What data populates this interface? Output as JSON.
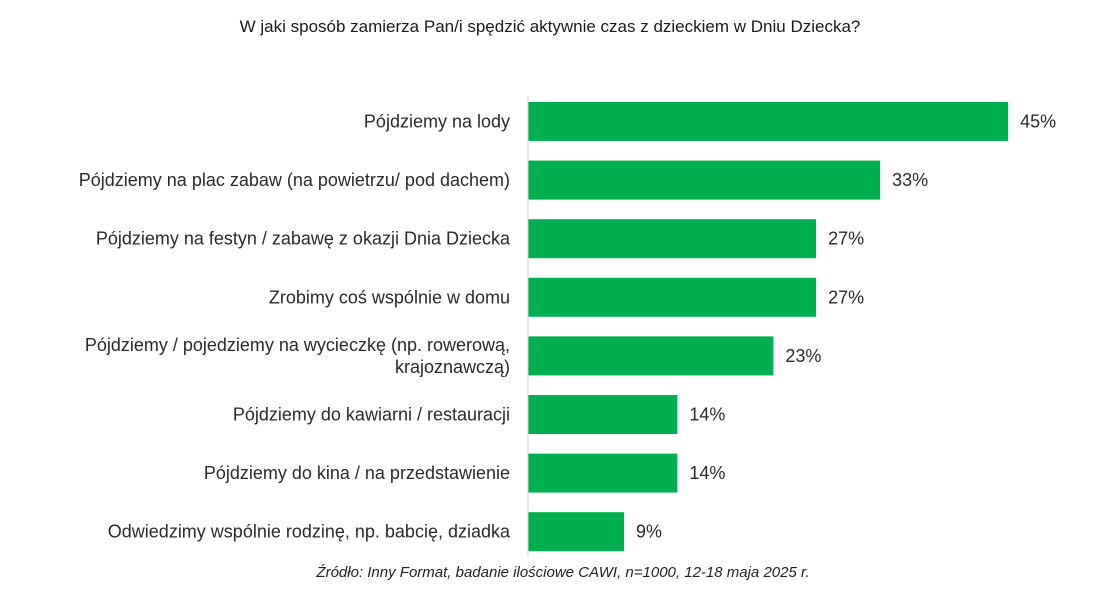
{
  "chart_data": {
    "type": "bar",
    "orientation": "horizontal",
    "title": "W jaki sposób zamierza Pan/i spędzić aktywnie czas z dzieckiem w Dniu Dziecka?",
    "categories": [
      [
        "Pójdziemy na lody"
      ],
      [
        "Pójdziemy na plac zabaw (na powietrzu/ pod dachem)"
      ],
      [
        "Pójdziemy na festyn / zabawę z okazji Dnia Dziecka"
      ],
      [
        "Zrobimy coś wspólnie w domu"
      ],
      [
        "Pójdziemy / pojedziemy na wycieczkę (np. rowerową,",
        "krajoznawczą)"
      ],
      [
        "Pójdziemy do kawiarni / restauracji"
      ],
      [
        "Pójdziemy do kina / na przedstawienie"
      ],
      [
        "Odwiedzimy wspólnie rodzinę, np. babcię, dziadka"
      ]
    ],
    "values": [
      45,
      33,
      27,
      27,
      23,
      14,
      14,
      9
    ],
    "value_labels": [
      "45%",
      "33%",
      "27%",
      "27%",
      "23%",
      "14%",
      "14%",
      "9%"
    ],
    "unit": "%",
    "bar_color": "#00b050",
    "grid": false,
    "legend": "none"
  },
  "source": "Źródło: Inny Format, badanie ilościowe CAWI, n=1000, 12-18 maja 2025 r."
}
